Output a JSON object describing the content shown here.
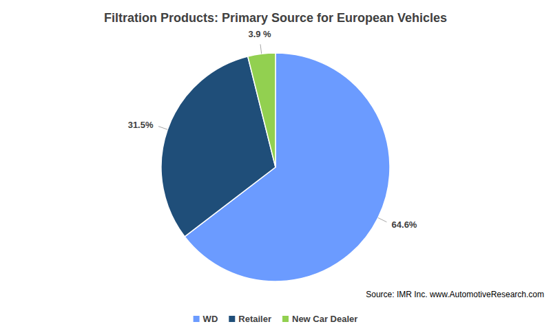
{
  "chart_data": {
    "type": "pie",
    "title": "Filtration Products: Primary Source for European Vehicles",
    "source": "Source: IMR Inc. www.AutomotiveResearch.com",
    "categories": [
      "WD",
      "Retailer",
      "New Car Dealer"
    ],
    "values": [
      64.6,
      31.5,
      3.9
    ],
    "value_labels": [
      "64.6%",
      "31.5%",
      "3.9 %"
    ],
    "colors": [
      "#6b9bff",
      "#1f4e79",
      "#92d050"
    ],
    "data_labels": true,
    "legend": "bottom"
  }
}
